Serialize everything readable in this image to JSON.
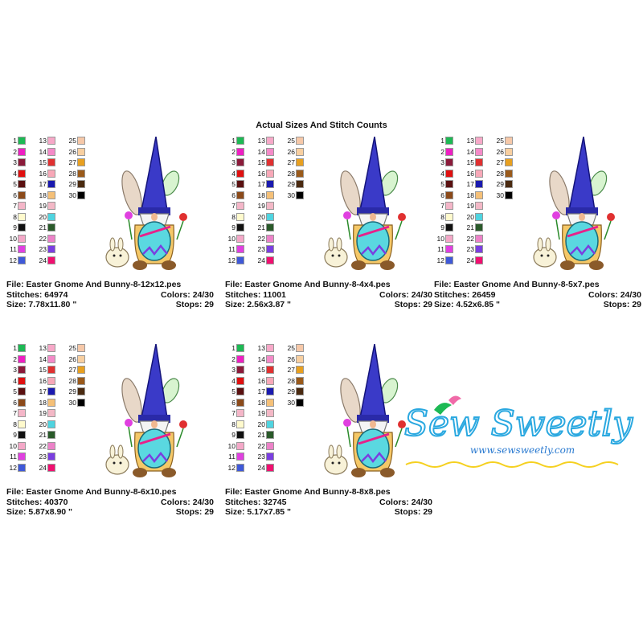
{
  "title": "Actual Sizes And Stitch Counts",
  "palette_colors": [
    "#1db954",
    "#ee1fc2",
    "#8b1a3a",
    "#e01010",
    "#5a1010",
    "#8b4a1a",
    "#f4b6c8",
    "#fffacd",
    "#111111",
    "#f4a8c8",
    "#e040e0",
    "#3f59d8",
    "#f7a8c8",
    "#f48ac8",
    "#e03030",
    "#f8a8b8",
    "#1a1ab0",
    "#f5c078",
    "#f3b8c6",
    "#4fd4e0",
    "#2a5a2a",
    "#ec82c8",
    "#7a3ee0",
    "#f01070",
    "#f6c8a8",
    "#f8cfa0",
    "#e8a020",
    "#9a5a1a",
    "#4a2a10",
    "#000000"
  ],
  "panels": [
    {
      "file": "File: Easter Gnome And Bunny-8-12x12.pes",
      "stitches": "Stitches: 64974",
      "colors": "Colors: 24/30",
      "size": "Size: 7.78x11.80 \"",
      "stops": "Stops: 29"
    },
    {
      "file": "File: Easter Gnome And Bunny-8-4x4.pes",
      "stitches": "Stitches: 11001",
      "colors": "Colors: 24/30",
      "size": "Size: 2.56x3.87 \"",
      "stops": "Stops: 29"
    },
    {
      "file": "File: Easter Gnome And Bunny-8-5x7.pes",
      "stitches": "Stitches: 26459",
      "colors": "Colors: 24/30",
      "size": "Size: 4.52x6.85 \"",
      "stops": "Stops: 29"
    },
    {
      "file": "File: Easter Gnome And Bunny-8-6x10.pes",
      "stitches": "Stitches: 40370",
      "colors": "Colors: 24/30",
      "size": "Size: 5.87x8.90 \"",
      "stops": "Stops: 29"
    },
    {
      "file": "File: Easter Gnome And Bunny-8-8x8.pes",
      "stitches": "Stitches: 32745",
      "colors": "Colors: 24/30",
      "size": "Size: 5.17x7.85 \"",
      "stops": "Stops: 29"
    }
  ],
  "logo": {
    "brand": "Sew Sweetly",
    "url": "www.sewsweetly.com"
  }
}
